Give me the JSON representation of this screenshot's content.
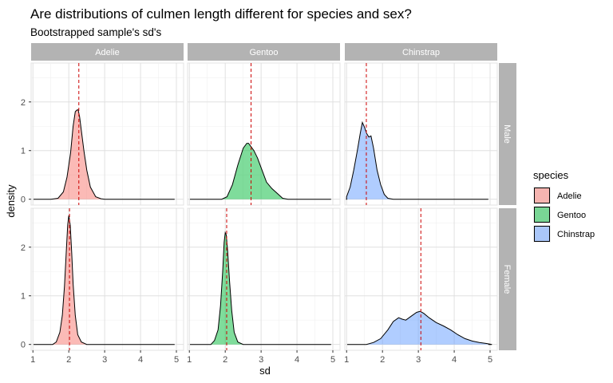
{
  "chart_data": {
    "type": "area",
    "title": "Are distributions of culmen length different for species and sex?",
    "subtitle": "Bootstrapped sample's sd's",
    "xlabel": "sd",
    "ylabel": "density",
    "xlim": [
      0.95,
      5.2
    ],
    "ylim": [
      -0.12,
      2.8
    ],
    "x_ticks": [
      1,
      2,
      3,
      4,
      5
    ],
    "y_ticks": [
      0,
      1,
      2
    ],
    "columns": [
      "Adelie",
      "Gentoo",
      "Chinstrap"
    ],
    "rows": [
      "Male",
      "Female"
    ],
    "grid": true,
    "legend": {
      "title": "species",
      "position": "right",
      "items": [
        {
          "label": "Adelie",
          "color": "#F8766D"
        },
        {
          "label": "Gentoo",
          "color": "#00BA38"
        },
        {
          "label": "Chinstrap",
          "color": "#619CFF"
        }
      ]
    },
    "mean_line_color": "#cc0000",
    "panels": [
      {
        "species": "Adelie",
        "sex": "Male",
        "mean": 2.28,
        "x": [
          1.5,
          1.7,
          1.85,
          1.95,
          2.05,
          2.12,
          2.18,
          2.22,
          2.26,
          2.3,
          2.36,
          2.42,
          2.5,
          2.6,
          2.75,
          2.9,
          3.0
        ],
        "y": [
          0,
          0.02,
          0.15,
          0.45,
          0.95,
          1.5,
          1.8,
          1.83,
          1.84,
          1.7,
          1.35,
          1.0,
          0.6,
          0.25,
          0.05,
          0.01,
          0
        ]
      },
      {
        "species": "Gentoo",
        "sex": "Male",
        "mean": 2.72,
        "x": [
          1.9,
          2.05,
          2.2,
          2.35,
          2.5,
          2.6,
          2.65,
          2.72,
          2.8,
          2.9,
          3.0,
          3.15,
          3.3,
          3.45,
          3.6,
          3.75
        ],
        "y": [
          0,
          0.05,
          0.3,
          0.7,
          1.05,
          1.15,
          1.15,
          1.08,
          1.0,
          0.85,
          0.65,
          0.35,
          0.22,
          0.12,
          0.02,
          0
        ]
      },
      {
        "species": "Chinstrap",
        "sex": "Male",
        "mean": 1.55,
        "x": [
          1.0,
          1.1,
          1.2,
          1.3,
          1.38,
          1.44,
          1.5,
          1.56,
          1.62,
          1.68,
          1.75,
          1.85,
          1.95,
          2.05,
          2.15,
          2.3
        ],
        "y": [
          0.05,
          0.25,
          0.6,
          1.0,
          1.35,
          1.58,
          1.48,
          1.35,
          1.28,
          1.3,
          1.05,
          0.6,
          0.3,
          0.1,
          0.02,
          0
        ]
      },
      {
        "species": "Adelie",
        "sex": "Female",
        "mean": 2.02,
        "x": [
          1.55,
          1.65,
          1.75,
          1.82,
          1.88,
          1.93,
          1.97,
          2.0,
          2.04,
          2.08,
          2.12,
          2.18,
          2.25,
          2.35,
          2.5
        ],
        "y": [
          0,
          0.05,
          0.25,
          0.6,
          1.2,
          1.9,
          2.45,
          2.65,
          2.45,
          1.9,
          1.25,
          0.6,
          0.2,
          0.05,
          0
        ]
      },
      {
        "species": "Gentoo",
        "sex": "Female",
        "mean": 2.04,
        "x": [
          1.6,
          1.7,
          1.8,
          1.87,
          1.93,
          1.97,
          2.0,
          2.03,
          2.07,
          2.12,
          2.18,
          2.25,
          2.35,
          2.5
        ],
        "y": [
          0,
          0.08,
          0.3,
          0.8,
          1.5,
          2.1,
          2.3,
          2.25,
          1.9,
          1.3,
          0.7,
          0.25,
          0.05,
          0
        ]
      },
      {
        "species": "Chinstrap",
        "sex": "Female",
        "mean": 3.07,
        "x": [
          1.55,
          1.75,
          1.95,
          2.15,
          2.3,
          2.45,
          2.55,
          2.65,
          2.8,
          2.95,
          3.05,
          3.15,
          3.3,
          3.5,
          3.7,
          3.9,
          4.1,
          4.3,
          4.5,
          4.7,
          4.9,
          5.05
        ],
        "y": [
          0,
          0.04,
          0.12,
          0.3,
          0.47,
          0.55,
          0.52,
          0.5,
          0.58,
          0.66,
          0.68,
          0.64,
          0.55,
          0.45,
          0.38,
          0.3,
          0.2,
          0.12,
          0.07,
          0.04,
          0.02,
          0
        ]
      }
    ]
  }
}
